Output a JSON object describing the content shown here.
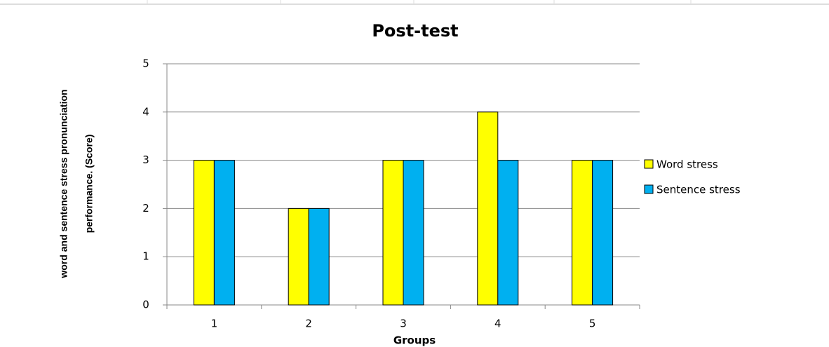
{
  "chart_data": {
    "type": "bar",
    "title": "Post-test",
    "xlabel": "Groups",
    "ylabel": [
      "word and sentence stress pronunciation",
      "performance. (Score)"
    ],
    "categories": [
      "1",
      "2",
      "3",
      "4",
      "5"
    ],
    "series": [
      {
        "name": "Word stress",
        "color": "#ffff00",
        "values": [
          3,
          2,
          3,
          4,
          3
        ]
      },
      {
        "name": "Sentence stress",
        "color": "#00b0f0",
        "values": [
          3,
          2,
          3,
          3,
          3
        ]
      }
    ],
    "ylim": [
      0,
      5
    ],
    "yticks": [
      0,
      1,
      2,
      3,
      4,
      5
    ],
    "grid": true,
    "legend": "right"
  }
}
